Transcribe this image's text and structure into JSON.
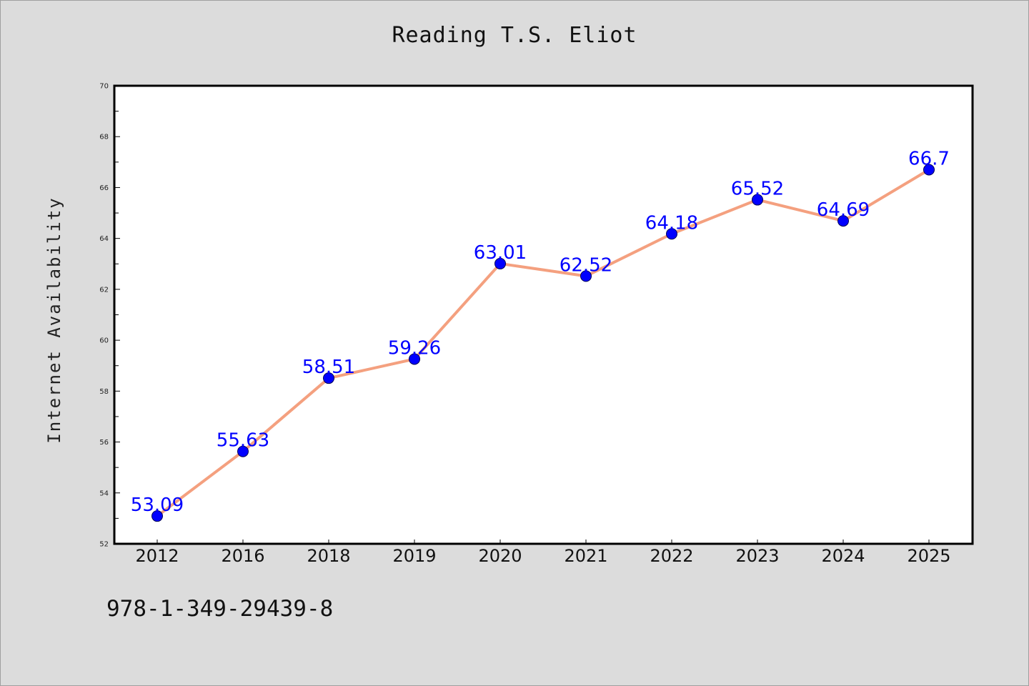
{
  "chart_data": {
    "type": "line",
    "title": "Reading T.S. Eliot",
    "xlabel": "",
    "ylabel": "Internet Availability",
    "categories": [
      "2012",
      "2016",
      "2018",
      "2019",
      "2020",
      "2021",
      "2022",
      "2023",
      "2024",
      "2025"
    ],
    "values": [
      53.09,
      55.63,
      58.51,
      59.26,
      63.01,
      62.52,
      64.18,
      65.52,
      64.69,
      66.7
    ],
    "data_labels": [
      "53.09",
      "55.63",
      "58.51",
      "59.26",
      "63.01",
      "62.52",
      "64.18",
      "65.52",
      "64.69",
      "66.7"
    ],
    "ylim": [
      52,
      70
    ],
    "yticks": [
      "52",
      "54",
      "56",
      "58",
      "60",
      "62",
      "64",
      "66",
      "68",
      "70"
    ],
    "grid": false,
    "line_color": "#f4a07f",
    "marker_color": "#0000ff",
    "label_color": "#0000ff",
    "background": "#dcdcdc",
    "plot_background": "#ffffff"
  },
  "footer": {
    "isbn": "978-1-349-29439-8"
  }
}
